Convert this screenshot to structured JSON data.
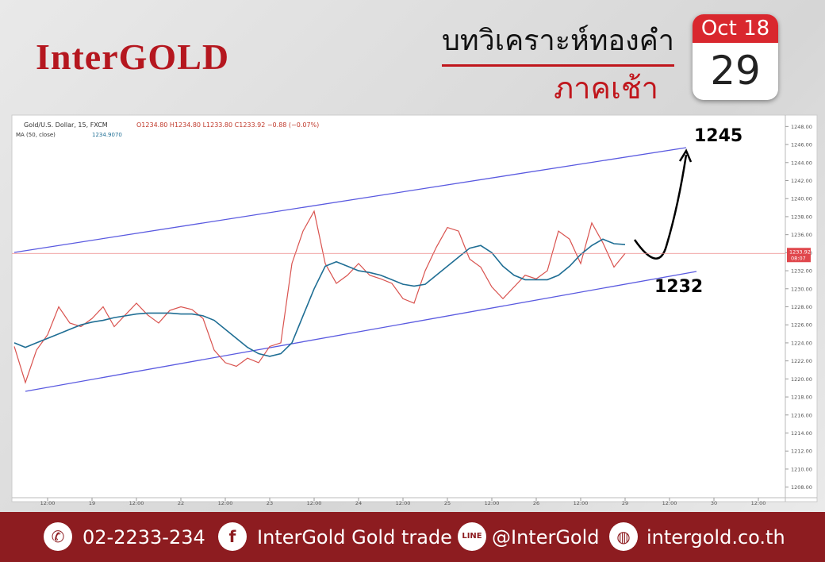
{
  "header": {
    "brand": "InterGOLD",
    "title": "บทวิเคราะห์ทองคำ",
    "subtitle": "ภาคเช้า",
    "month": "Oct 18",
    "day": "29"
  },
  "chart_data": {
    "type": "line",
    "quote": "O1234.80  H1234.80  L1233.80  C1233.92  −0.88 (−0.07%)",
    "ma_current": "1234.9070",
    "last_price_label": "1233.92",
    "last_time": "08:07",
    "annotations": [
      "1245",
      "1232"
    ],
    "categories": [
      null,
      null,
      null,
      "12:00",
      null,
      null,
      null,
      "19",
      null,
      null,
      null,
      "12:00",
      null,
      null,
      null,
      "22",
      null,
      null,
      null,
      "12:00",
      null,
      null,
      null,
      "23",
      null,
      null,
      null,
      "12:00",
      null,
      null,
      null,
      "24",
      null,
      null,
      null,
      "12:00",
      null,
      null,
      null,
      "25",
      null,
      null,
      null,
      "12:00",
      null,
      null,
      null,
      "26",
      null,
      null,
      null,
      "12:00",
      null,
      null,
      null,
      "29",
      null,
      null,
      null,
      "12:00",
      null,
      null,
      null,
      "30",
      null,
      null,
      null,
      "12:00",
      null,
      null
    ],
    "series": [
      {
        "name": "Gold/U.S. Dollar, 15, FXCM",
        "color": "#d9534f",
        "values": [
          1223.6,
          1219.6,
          1223.2,
          1224.9,
          1228.0,
          1226.2,
          1225.8,
          1226.7,
          1228.0,
          1225.8,
          1227.1,
          1228.4,
          1227.1,
          1226.2,
          1227.6,
          1228.0,
          1227.7,
          1226.7,
          1223.2,
          1221.8,
          1221.4,
          1222.3,
          1221.8,
          1223.6,
          1224.0,
          1232.8,
          1236.4,
          1238.6,
          1232.8,
          1230.6,
          1231.5,
          1232.8,
          1231.5,
          1231.1,
          1230.6,
          1228.9,
          1228.4,
          1232.0,
          1234.6,
          1236.8,
          1236.4,
          1233.3,
          1232.4,
          1230.2,
          1228.9,
          1230.2,
          1231.5,
          1231.1,
          1232.0,
          1236.4,
          1235.5,
          1232.8,
          1237.3,
          1235.1,
          1232.4,
          1233.92,
          null,
          null,
          null,
          null,
          null,
          null,
          null,
          null,
          null,
          null,
          null,
          null,
          null,
          null
        ]
      },
      {
        "name": "MA (50, close)",
        "color": "#1f6e94",
        "values": [
          1224,
          1223.5,
          1224,
          1224.5,
          1225,
          1225.5,
          1226,
          1226.3,
          1226.5,
          1226.8,
          1227,
          1227.2,
          1227.3,
          1227.3,
          1227.3,
          1227.2,
          1227.2,
          1227,
          1226.5,
          1225.5,
          1224.5,
          1223.5,
          1222.8,
          1222.5,
          1222.8,
          1224,
          1227,
          1230,
          1232.5,
          1233,
          1232.5,
          1232,
          1231.8,
          1231.5,
          1231,
          1230.5,
          1230.3,
          1230.5,
          1231.5,
          1232.5,
          1233.5,
          1234.5,
          1234.8,
          1234,
          1232.5,
          1231.5,
          1231,
          1231,
          1231,
          1231.5,
          1232.5,
          1233.8,
          1234.8,
          1235.5,
          1235,
          1234.907,
          null,
          null,
          null,
          null,
          null,
          null,
          null,
          null,
          null,
          null,
          null,
          null,
          null,
          null
        ]
      }
    ],
    "ylim": [
      1207,
      1249
    ],
    "yticks": [
      {
        "value": 1208,
        "label": "1208.00"
      },
      {
        "value": 1210,
        "label": "1210.00"
      },
      {
        "value": 1212,
        "label": "1212.00"
      },
      {
        "value": 1214,
        "label": "1214.00"
      },
      {
        "value": 1216,
        "label": "1216.00"
      },
      {
        "value": 1218,
        "label": "1218.00"
      },
      {
        "value": 1220,
        "label": "1220.00"
      },
      {
        "value": 1222,
        "label": "1222.00"
      },
      {
        "value": 1224,
        "label": "1224.00"
      },
      {
        "value": 1226,
        "label": "1226.00"
      },
      {
        "value": 1228,
        "label": "1228.00"
      },
      {
        "value": 1230,
        "label": "1230.00"
      },
      {
        "value": 1232,
        "label": "1232.00"
      },
      {
        "value": 1234,
        "label": "1234.00"
      },
      {
        "value": 1236,
        "label": "1236.00"
      },
      {
        "value": 1238,
        "label": "1238.00"
      },
      {
        "value": 1240,
        "label": "1240.00"
      },
      {
        "value": 1242,
        "label": "1242.00"
      },
      {
        "value": 1244,
        "label": "1244.00"
      },
      {
        "value": 1246,
        "label": "1246.00"
      },
      {
        "value": 1248,
        "label": "1248.00"
      }
    ],
    "grid": false
  },
  "footer": {
    "phone": "02-2233-234",
    "facebook": "InterGold Gold trade",
    "line": "@InterGold",
    "website": "intergold.co.th"
  }
}
